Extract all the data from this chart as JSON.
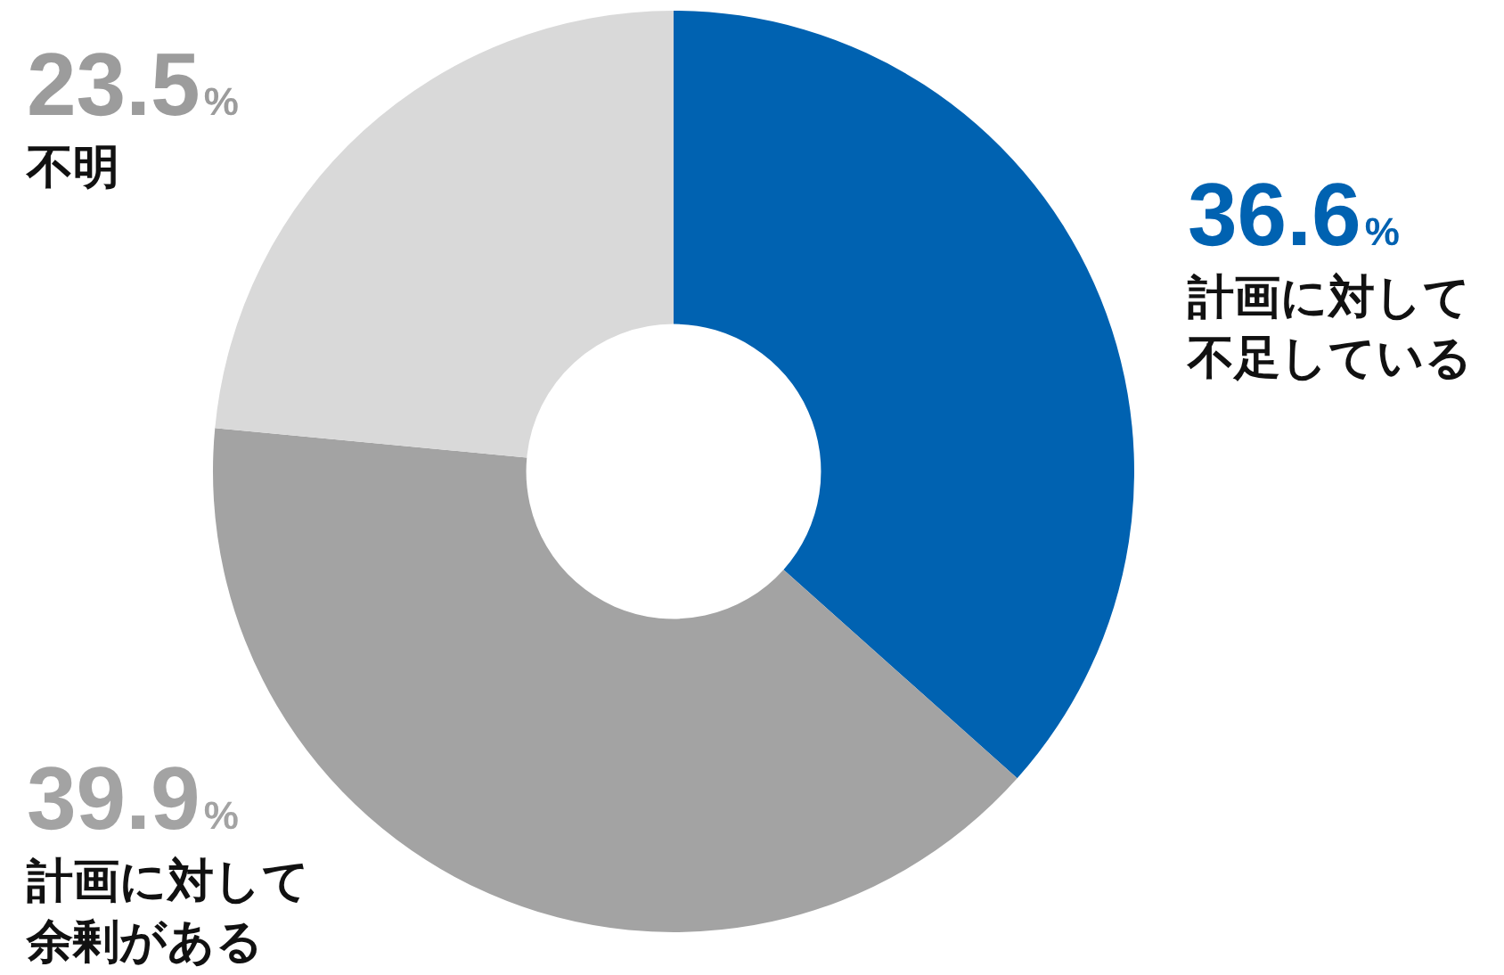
{
  "chart_data": {
    "type": "donut",
    "categories": [
      "計画に対して不足している",
      "計画に対して余剰がある",
      "不明"
    ],
    "values": [
      36.6,
      39.9,
      23.5
    ],
    "colors": [
      "#0062b1",
      "#a3a3a3",
      "#d9d9d9"
    ],
    "value_labels": [
      "36.6%",
      "39.9%",
      "23.5%"
    ],
    "legend": false
  }
}
